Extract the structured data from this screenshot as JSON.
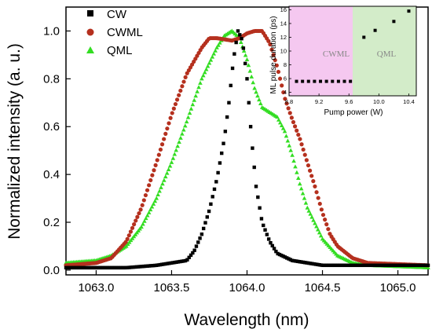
{
  "chart_data": [
    {
      "type": "scatter",
      "xlabel": "Wavelength (nm)",
      "ylabel": "Normalized intensity (a. u.)",
      "xlim": [
        1062.8,
        1065.2
      ],
      "ylim": [
        -0.02,
        1.1
      ],
      "x_ticks": [
        "1063.0",
        "1063.5",
        "1064.0",
        "1064.5",
        "1065.0"
      ],
      "y_ticks": [
        "0.0",
        "0.2",
        "0.4",
        "0.6",
        "0.8",
        "1.0"
      ],
      "x_tick_values": [
        1063.0,
        1063.5,
        1064.0,
        1064.5,
        1065.0
      ],
      "y_tick_values": [
        0.0,
        0.2,
        0.4,
        0.6,
        0.8,
        1.0
      ],
      "legend_position": "top-left",
      "series": [
        {
          "name": "CW",
          "marker": "square",
          "color": "#000000",
          "x": [
            1062.8,
            1063.0,
            1063.2,
            1063.4,
            1063.6,
            1063.65,
            1063.7,
            1063.75,
            1063.8,
            1063.85,
            1063.88,
            1063.91,
            1063.94,
            1063.97,
            1064.0,
            1064.03,
            1064.06,
            1064.1,
            1064.15,
            1064.2,
            1064.3,
            1064.4,
            1064.5,
            1064.7,
            1065.0,
            1065.2
          ],
          "y": [
            0.01,
            0.01,
            0.01,
            0.02,
            0.04,
            0.08,
            0.15,
            0.25,
            0.38,
            0.55,
            0.7,
            0.88,
            1.0,
            0.96,
            0.8,
            0.55,
            0.35,
            0.2,
            0.12,
            0.07,
            0.04,
            0.03,
            0.02,
            0.02,
            0.02,
            0.02
          ]
        },
        {
          "name": "CWML",
          "marker": "circle",
          "color": "#b5301e",
          "x": [
            1062.8,
            1063.0,
            1063.1,
            1063.2,
            1063.3,
            1063.4,
            1063.5,
            1063.6,
            1063.7,
            1063.75,
            1063.8,
            1063.9,
            1063.95,
            1064.0,
            1064.05,
            1064.1,
            1064.15,
            1064.2,
            1064.25,
            1064.3,
            1064.35,
            1064.4,
            1064.45,
            1064.5,
            1064.55,
            1064.6,
            1064.7,
            1064.8,
            1065.2
          ],
          "y": [
            0.02,
            0.03,
            0.05,
            0.12,
            0.26,
            0.45,
            0.65,
            0.82,
            0.93,
            0.97,
            0.97,
            0.96,
            0.97,
            0.99,
            1.0,
            1.0,
            0.95,
            0.85,
            0.72,
            0.63,
            0.55,
            0.45,
            0.35,
            0.24,
            0.15,
            0.1,
            0.05,
            0.03,
            0.02
          ]
        },
        {
          "name": "QML",
          "marker": "triangle",
          "color": "#33dd22",
          "x": [
            1062.8,
            1063.0,
            1063.1,
            1063.2,
            1063.3,
            1063.4,
            1063.5,
            1063.6,
            1063.7,
            1063.8,
            1063.85,
            1063.9,
            1063.95,
            1064.0,
            1064.05,
            1064.1,
            1064.15,
            1064.2,
            1064.25,
            1064.3,
            1064.35,
            1064.4,
            1064.5,
            1064.6,
            1064.7,
            1064.8,
            1065.2
          ],
          "y": [
            0.03,
            0.04,
            0.06,
            0.1,
            0.18,
            0.3,
            0.45,
            0.62,
            0.8,
            0.93,
            0.98,
            1.0,
            0.97,
            0.88,
            0.76,
            0.68,
            0.66,
            0.64,
            0.58,
            0.48,
            0.36,
            0.26,
            0.13,
            0.06,
            0.03,
            0.02,
            0.01
          ]
        }
      ]
    },
    {
      "type": "scatter",
      "xlabel": "Pump power (W)",
      "ylabel": "ML pulse duration (ps)",
      "xlim": [
        8.8,
        10.5
      ],
      "ylim": [
        3.5,
        16.5
      ],
      "x_ticks": [
        "8.8",
        "9.2",
        "9.6",
        "10.0",
        "10.4"
      ],
      "y_ticks": [
        "4",
        "6",
        "8",
        "10",
        "12",
        "14",
        "16"
      ],
      "x_tick_values": [
        8.8,
        9.2,
        9.6,
        10.0,
        10.4
      ],
      "y_tick_values": [
        4,
        6,
        8,
        10,
        12,
        14,
        16
      ],
      "regions": [
        {
          "label": "CWML",
          "from": 8.8,
          "to": 9.65,
          "color": "#f5c8f0"
        },
        {
          "label": "QML",
          "from": 9.65,
          "to": 10.5,
          "color": "#d3ecc9"
        }
      ],
      "series": [
        {
          "marker": "square",
          "color": "#000000",
          "x": [
            8.9,
            8.98,
            9.06,
            9.14,
            9.22,
            9.3,
            9.38,
            9.46,
            9.54,
            9.62,
            9.8,
            9.95,
            10.2,
            10.4
          ],
          "y": [
            5.6,
            5.6,
            5.6,
            5.6,
            5.6,
            5.6,
            5.6,
            5.6,
            5.6,
            5.6,
            12.0,
            13.0,
            14.3,
            15.8
          ]
        }
      ]
    }
  ]
}
